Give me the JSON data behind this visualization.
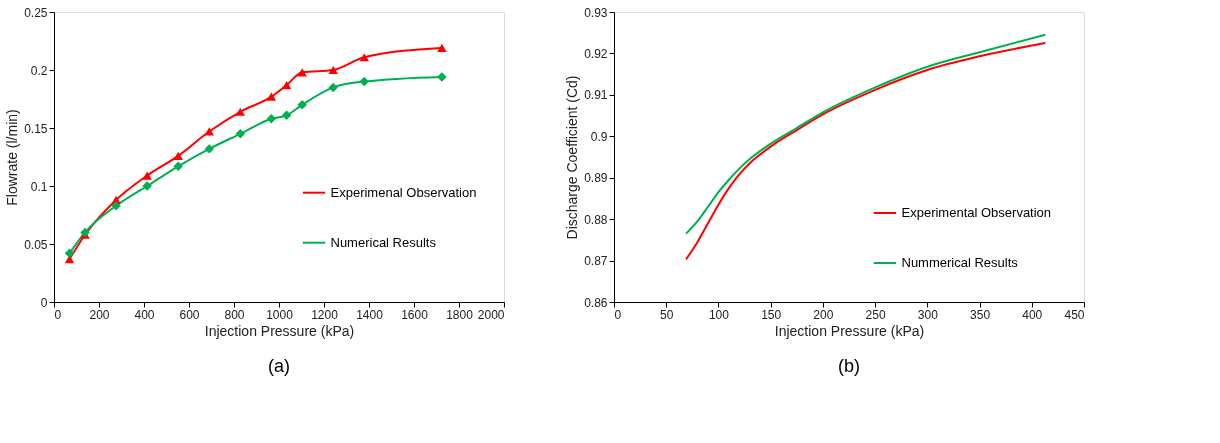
{
  "chart_data": [
    {
      "type": "line",
      "xlabel": "Injection Pressure (kPa)",
      "ylabel": "Flowrate (l/min)",
      "x": [
        69,
        138,
        276,
        414,
        552,
        690,
        828,
        966,
        1034,
        1103,
        1241,
        1379,
        1724
      ],
      "series": [
        {
          "name": "Experimenal Observation",
          "color": "#ff0000",
          "marker": "triangle",
          "values": [
            0.037,
            0.058,
            0.088,
            0.109,
            0.126,
            0.147,
            0.164,
            0.177,
            0.187,
            0.198,
            0.2,
            0.211,
            0.219
          ]
        },
        {
          "name": "Numerical Results",
          "color": "#00b050",
          "marker": "diamond",
          "values": [
            0.042,
            0.06,
            0.083,
            0.1,
            0.117,
            0.132,
            0.145,
            0.158,
            0.161,
            0.17,
            0.185,
            0.19,
            0.194
          ]
        }
      ],
      "xlim": [
        0,
        2000
      ],
      "xticks": [
        0,
        200,
        400,
        600,
        800,
        1000,
        1200,
        1400,
        1600,
        1800,
        2000
      ],
      "ylim": [
        0,
        0.25
      ],
      "yticks": [
        0,
        0.05,
        0.1,
        0.15,
        0.2,
        0.25
      ],
      "grid": false,
      "legend": "right",
      "annotations": [
        "(a)"
      ]
    },
    {
      "type": "line",
      "xlabel": "Injection Pressure (kPa)",
      "ylabel": "Discharge Coefficient (Cd)",
      "x": [
        69,
        80,
        90,
        100,
        110,
        120,
        130,
        150,
        175,
        200,
        250,
        300,
        350,
        413
      ],
      "series": [
        {
          "name": "Experimental Observation",
          "color": "#ff0000",
          "values": [
            0.8703,
            0.8745,
            0.879,
            0.8835,
            0.8875,
            0.8908,
            0.8935,
            0.8975,
            0.9015,
            0.9053,
            0.9112,
            0.916,
            0.9193,
            0.9225
          ]
        },
        {
          "name": "Nummerical Results",
          "color": "#00b050",
          "values": [
            0.8765,
            0.8795,
            0.883,
            0.8865,
            0.8895,
            0.8922,
            0.8945,
            0.8982,
            0.902,
            0.9058,
            0.9118,
            0.9168,
            0.9203,
            0.9245
          ]
        }
      ],
      "xlim": [
        0,
        450
      ],
      "xticks": [
        0,
        50,
        100,
        150,
        200,
        250,
        300,
        350,
        400,
        450
      ],
      "ylim": [
        0.86,
        0.93
      ],
      "yticks": [
        0.86,
        0.87,
        0.88,
        0.89,
        0.9,
        0.91,
        0.92,
        0.93
      ],
      "grid": false,
      "legend": "bottom right",
      "annotations": [
        "(b)"
      ]
    }
  ]
}
